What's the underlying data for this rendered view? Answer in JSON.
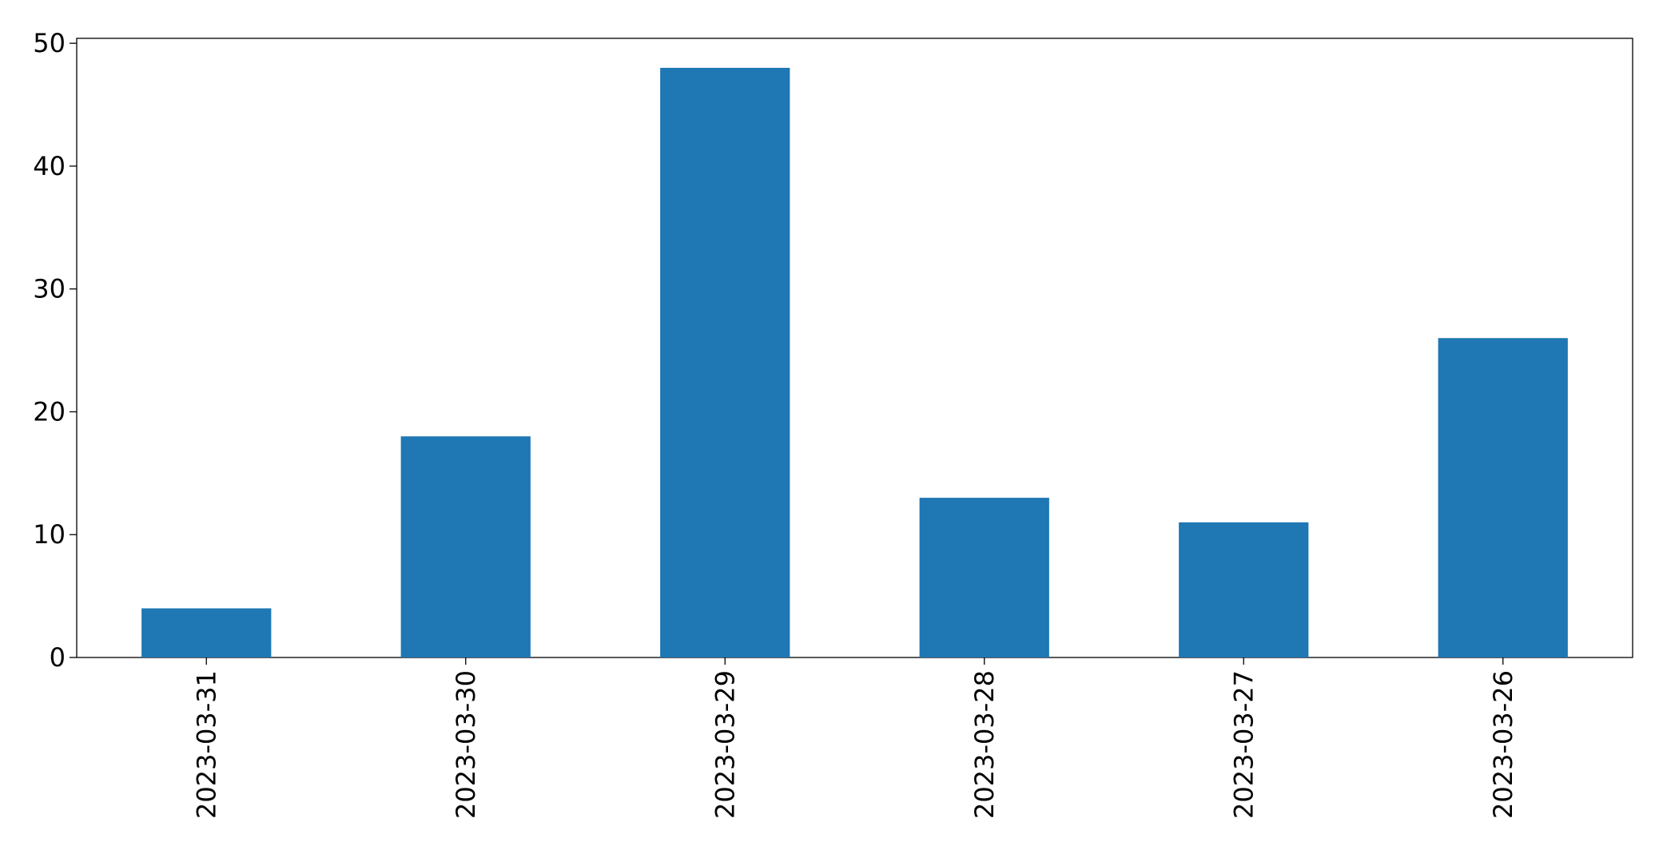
{
  "chart_data": {
    "type": "bar",
    "categories": [
      "2023-03-31",
      "2023-03-30",
      "2023-03-29",
      "2023-03-28",
      "2023-03-27",
      "2023-03-26"
    ],
    "values": [
      4,
      18,
      48,
      13,
      11,
      26
    ],
    "color": "#1f77b4",
    "ylim": [
      0,
      50.4
    ],
    "yticks": [
      0,
      10,
      20,
      30,
      40,
      50
    ],
    "grid": false
  }
}
